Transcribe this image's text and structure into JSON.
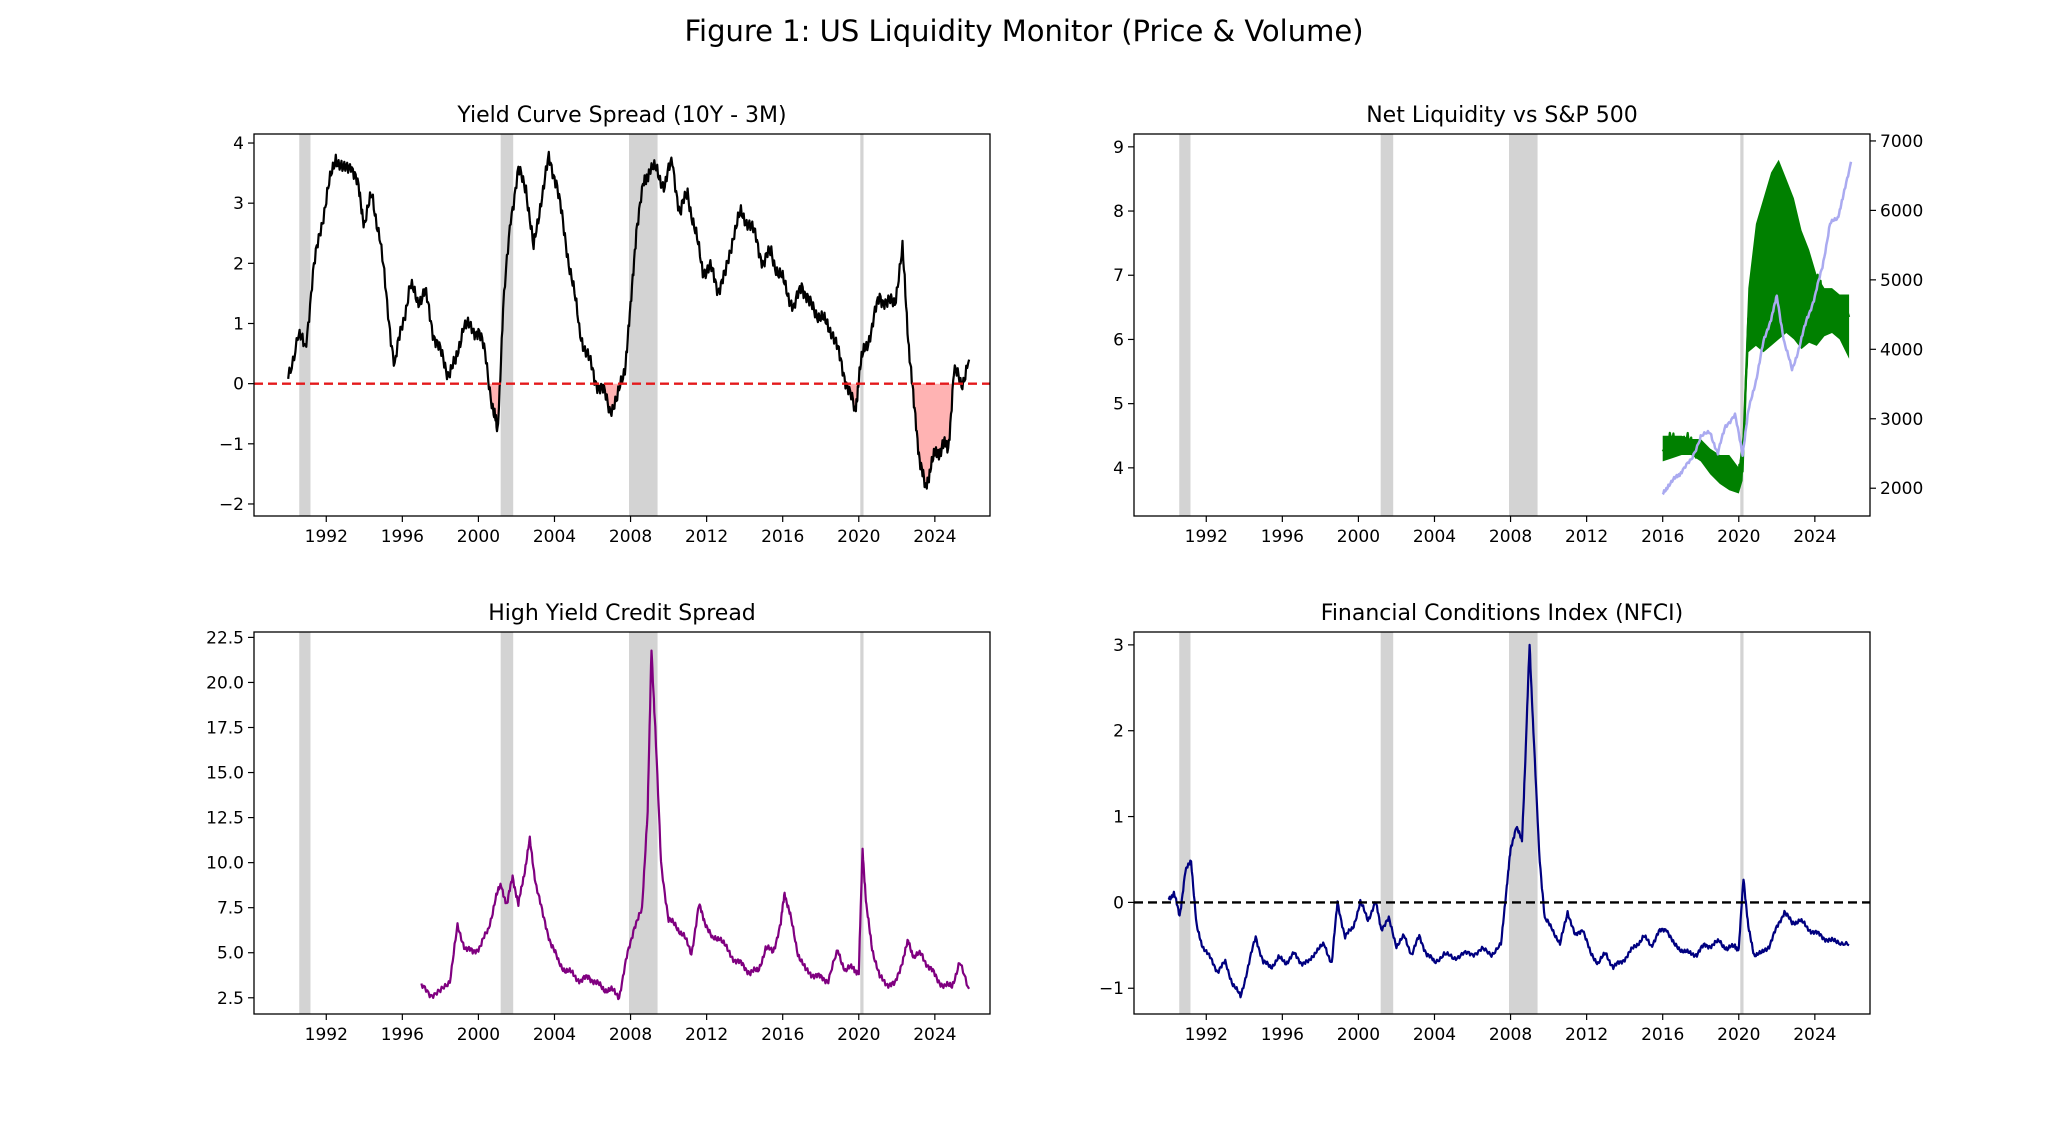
{
  "figure": {
    "title": "Figure 1: US Liquidity Monitor (Price & Volume)"
  },
  "recessions": [
    [
      1990.58,
      1991.17
    ],
    [
      2001.17,
      2001.83
    ],
    [
      2007.92,
      2009.42
    ],
    [
      2020.08,
      2020.25
    ]
  ],
  "chart_data": [
    {
      "type": "line",
      "title": "Yield Curve Spread (10Y - 3M)",
      "xlabel": "",
      "ylabel": "",
      "xlim": [
        1988.2,
        2026.9
      ],
      "ylim": [
        -2.2,
        4.15
      ],
      "xticks": [
        "1992",
        "1996",
        "2000",
        "2004",
        "2008",
        "2012",
        "2016",
        "2020",
        "2024"
      ],
      "yticks": [
        "−2",
        "−1",
        "0",
        "1",
        "2",
        "3",
        "4"
      ],
      "ytick_values": [
        -2,
        -1,
        0,
        1,
        2,
        3,
        4
      ],
      "reference_line": {
        "y": 0,
        "color": "#e41a1c",
        "style": "dashed"
      },
      "fill_below_zero": "#ffb3b3",
      "series": [
        {
          "name": "10Y - 3M spread",
          "color": "#000000",
          "x": [
            1990.0,
            1990.5,
            1990.9,
            1991.3,
            1991.7,
            1992.1,
            1992.5,
            1992.9,
            1993.3,
            1993.7,
            1994.0,
            1994.4,
            1994.8,
            1995.2,
            1995.6,
            1996.0,
            1996.4,
            1996.8,
            1997.2,
            1997.6,
            1998.0,
            1998.4,
            1998.8,
            1999.2,
            1999.6,
            2000.0,
            2000.4,
            2000.8,
            2001.0,
            2001.3,
            2001.7,
            2002.1,
            2002.5,
            2002.9,
            2003.3,
            2003.7,
            2004.1,
            2004.5,
            2004.9,
            2005.3,
            2005.7,
            2006.1,
            2006.5,
            2006.9,
            2007.3,
            2007.7,
            2008.0,
            2008.3,
            2008.7,
            2009.0,
            2009.4,
            2009.8,
            2010.2,
            2010.6,
            2011.0,
            2011.4,
            2011.8,
            2012.2,
            2012.6,
            2013.0,
            2013.4,
            2013.8,
            2014.2,
            2014.6,
            2015.0,
            2015.4,
            2015.8,
            2016.2,
            2016.6,
            2017.0,
            2017.4,
            2017.8,
            2018.2,
            2018.6,
            2019.0,
            2019.4,
            2019.8,
            2020.0,
            2020.3,
            2020.7,
            2021.1,
            2021.5,
            2021.9,
            2022.3,
            2022.6,
            2022.9,
            2023.2,
            2023.5,
            2023.8,
            2024.1,
            2024.4,
            2024.7,
            2025.0,
            2025.4,
            2025.8
          ],
          "y": [
            0.1,
            0.8,
            0.6,
            1.8,
            2.6,
            3.2,
            3.8,
            3.5,
            3.7,
            3.2,
            2.7,
            3.1,
            2.5,
            1.3,
            0.3,
            1.0,
            1.6,
            1.4,
            1.5,
            0.9,
            0.5,
            0.2,
            0.3,
            1.0,
            0.9,
            0.9,
            0.4,
            -0.5,
            -0.8,
            1.2,
            2.8,
            3.5,
            3.3,
            2.2,
            3.1,
            3.7,
            3.4,
            2.5,
            1.8,
            0.9,
            0.5,
            0.1,
            -0.1,
            -0.4,
            -0.3,
            0.3,
            1.2,
            2.6,
            3.3,
            3.6,
            3.5,
            3.3,
            3.7,
            2.8,
            3.2,
            2.5,
            1.9,
            1.9,
            1.6,
            1.8,
            2.5,
            2.8,
            2.7,
            2.4,
            2.0,
            2.2,
            1.8,
            1.6,
            1.2,
            1.7,
            1.3,
            1.2,
            1.0,
            0.9,
            0.4,
            0.0,
            -0.5,
            0.1,
            0.6,
            0.9,
            1.5,
            1.3,
            1.4,
            2.2,
            0.8,
            -0.4,
            -1.2,
            -1.8,
            -1.3,
            -1.2,
            -1.0,
            -1.1,
            0.2,
            0.0,
            0.4
          ]
        }
      ]
    },
    {
      "type": "line",
      "title": "Net Liquidity vs S&P 500",
      "xlabel": "",
      "ylabel": "",
      "xlim": [
        1988.2,
        2026.9
      ],
      "ylim": [
        3.25,
        9.2
      ],
      "y2lim": [
        1600,
        7100
      ],
      "xticks": [
        "1992",
        "1996",
        "2000",
        "2004",
        "2008",
        "2012",
        "2016",
        "2020",
        "2024"
      ],
      "yticks": [
        "4",
        "5",
        "6",
        "7",
        "8",
        "9"
      ],
      "ytick_values": [
        4,
        5,
        6,
        7,
        8,
        9
      ],
      "y2ticks": [
        "2000",
        "3000",
        "4000",
        "5000",
        "6000",
        "7000"
      ],
      "y2tick_values": [
        2000,
        3000,
        4000,
        5000,
        6000,
        7000
      ],
      "series": [
        {
          "name": "Net Liquidity",
          "axis": "left",
          "color": "#008000",
          "x": [
            2016.0,
            2016.5,
            2017.0,
            2017.5,
            2018.0,
            2018.5,
            2019.0,
            2019.5,
            2020.0,
            2020.2,
            2020.5,
            2020.9,
            2021.3,
            2021.7,
            2022.1,
            2022.5,
            2022.9,
            2023.3,
            2023.7,
            2024.1,
            2024.5,
            2024.9,
            2025.3,
            2025.8
          ],
          "y": [
            4.3,
            4.4,
            4.4,
            4.35,
            4.3,
            4.1,
            3.95,
            3.9,
            3.85,
            4.1,
            6.2,
            7.0,
            7.3,
            7.7,
            8.4,
            8.3,
            7.8,
            7.4,
            7.1,
            6.9,
            6.6,
            6.55,
            6.4,
            6.35
          ],
          "band_low": [
            4.1,
            4.15,
            4.2,
            4.2,
            4.1,
            3.9,
            3.75,
            3.65,
            3.6,
            3.8,
            5.8,
            5.9,
            5.8,
            5.9,
            6.0,
            6.1,
            6.0,
            5.85,
            5.95,
            5.9,
            6.05,
            6.1,
            6.0,
            5.7
          ],
          "band_high": [
            4.5,
            4.5,
            4.5,
            4.45,
            4.45,
            4.3,
            4.2,
            4.2,
            4.0,
            4.5,
            6.8,
            7.8,
            8.2,
            8.6,
            8.8,
            8.5,
            8.2,
            7.7,
            7.4,
            7.0,
            6.8,
            6.8,
            6.7,
            6.7
          ]
        },
        {
          "name": "S&P 500",
          "axis": "right",
          "color": "#aaaaf0",
          "x": [
            2016.0,
            2016.3,
            2016.7,
            2017.0,
            2017.5,
            2018.0,
            2018.5,
            2018.9,
            2019.3,
            2019.8,
            2020.2,
            2020.5,
            2020.9,
            2021.3,
            2021.7,
            2022.0,
            2022.4,
            2022.8,
            2023.2,
            2023.6,
            2024.0,
            2024.4,
            2024.8,
            2025.2,
            2025.5,
            2025.9
          ],
          "y": [
            1900,
            2050,
            2150,
            2250,
            2400,
            2750,
            2800,
            2500,
            2900,
            3050,
            2500,
            3100,
            3550,
            4100,
            4450,
            4750,
            4100,
            3700,
            4050,
            4450,
            4750,
            5200,
            5800,
            5900,
            6200,
            6700
          ]
        }
      ]
    },
    {
      "type": "line",
      "title": "High Yield Credit Spread",
      "xlabel": "",
      "ylabel": "",
      "xlim": [
        1988.2,
        2026.9
      ],
      "ylim": [
        1.6,
        22.8
      ],
      "xticks": [
        "1992",
        "1996",
        "2000",
        "2004",
        "2008",
        "2012",
        "2016",
        "2020",
        "2024"
      ],
      "yticks": [
        "2.5",
        "5.0",
        "7.5",
        "10.0",
        "12.5",
        "15.0",
        "17.5",
        "20.0",
        "22.5"
      ],
      "ytick_values": [
        2.5,
        5,
        7.5,
        10,
        12.5,
        15,
        17.5,
        20,
        22.5
      ],
      "series": [
        {
          "name": "HY spread",
          "color": "#800080",
          "x": [
            1997.0,
            1997.5,
            1998.0,
            1998.5,
            1998.9,
            1999.3,
            1999.7,
            2000.1,
            2000.5,
            2000.9,
            2001.2,
            2001.5,
            2001.8,
            2002.1,
            2002.4,
            2002.7,
            2003.0,
            2003.4,
            2003.8,
            2004.2,
            2004.6,
            2005.0,
            2005.4,
            2005.8,
            2006.2,
            2006.6,
            2007.0,
            2007.4,
            2007.8,
            2008.2,
            2008.6,
            2008.9,
            2009.1,
            2009.3,
            2009.6,
            2010.0,
            2010.4,
            2010.8,
            2011.2,
            2011.6,
            2011.9,
            2012.3,
            2012.7,
            2013.1,
            2013.5,
            2013.9,
            2014.3,
            2014.7,
            2015.1,
            2015.5,
            2015.9,
            2016.1,
            2016.4,
            2016.8,
            2017.2,
            2017.6,
            2018.0,
            2018.4,
            2018.9,
            2019.3,
            2019.7,
            2020.0,
            2020.2,
            2020.4,
            2020.7,
            2021.1,
            2021.5,
            2021.9,
            2022.3,
            2022.6,
            2022.9,
            2023.3,
            2023.7,
            2024.1,
            2024.5,
            2024.9,
            2025.3,
            2025.8
          ],
          "y": [
            3.1,
            2.7,
            2.8,
            3.5,
            6.4,
            5.3,
            5.0,
            5.4,
            6.2,
            8.0,
            8.8,
            7.6,
            9.3,
            7.6,
            9.4,
            11.2,
            9.0,
            7.0,
            5.6,
            4.5,
            4.0,
            3.8,
            3.4,
            3.7,
            3.3,
            3.0,
            2.9,
            2.6,
            4.7,
            6.5,
            7.3,
            13.0,
            21.8,
            17.5,
            10.0,
            6.8,
            6.5,
            5.9,
            5.0,
            7.6,
            6.8,
            5.7,
            5.9,
            5.1,
            4.6,
            4.3,
            3.9,
            4.0,
            5.2,
            5.1,
            6.6,
            8.4,
            7.0,
            5.0,
            4.0,
            3.8,
            3.6,
            3.5,
            5.1,
            4.0,
            4.2,
            3.9,
            10.8,
            7.5,
            5.3,
            3.6,
            3.3,
            3.2,
            4.6,
            5.6,
            4.8,
            4.9,
            4.2,
            3.6,
            3.1,
            3.2,
            4.4,
            3.0
          ]
        }
      ]
    },
    {
      "type": "line",
      "title": "Financial Conditions Index (NFCI)",
      "xlabel": "",
      "ylabel": "",
      "xlim": [
        1988.2,
        2026.9
      ],
      "ylim": [
        -1.3,
        3.15
      ],
      "xticks": [
        "1992",
        "1996",
        "2000",
        "2004",
        "2008",
        "2012",
        "2016",
        "2020",
        "2024"
      ],
      "yticks": [
        "−1",
        "0",
        "1",
        "2",
        "3"
      ],
      "ytick_values": [
        -1,
        0,
        1,
        2,
        3
      ],
      "reference_line": {
        "y": 0,
        "color": "#000000",
        "style": "dashed"
      },
      "series": [
        {
          "name": "NFCI",
          "color": "#000080",
          "x": [
            1990.0,
            1990.3,
            1990.6,
            1990.9,
            1991.2,
            1991.5,
            1991.8,
            1992.2,
            1992.6,
            1993.0,
            1993.4,
            1993.8,
            1994.2,
            1994.6,
            1995.0,
            1995.4,
            1995.8,
            1996.2,
            1996.6,
            1997.0,
            1997.4,
            1997.8,
            1998.2,
            1998.6,
            1998.9,
            1999.3,
            1999.7,
            2000.1,
            2000.5,
            2000.9,
            2001.2,
            2001.6,
            2002.0,
            2002.4,
            2002.8,
            2003.2,
            2003.6,
            2004.0,
            2004.5,
            2005.0,
            2005.5,
            2006.0,
            2006.5,
            2007.0,
            2007.5,
            2007.8,
            2008.0,
            2008.3,
            2008.6,
            2008.8,
            2009.0,
            2009.2,
            2009.5,
            2009.8,
            2010.2,
            2010.6,
            2011.0,
            2011.4,
            2011.8,
            2012.2,
            2012.6,
            2013.0,
            2013.4,
            2013.8,
            2014.2,
            2014.6,
            2015.0,
            2015.4,
            2015.8,
            2016.2,
            2016.6,
            2017.0,
            2017.4,
            2017.8,
            2018.2,
            2018.6,
            2019.0,
            2019.4,
            2019.8,
            2020.0,
            2020.25,
            2020.5,
            2020.8,
            2021.2,
            2021.6,
            2022.0,
            2022.4,
            2022.8,
            2023.2,
            2023.6,
            2024.0,
            2024.4,
            2024.8,
            2025.2,
            2025.8
          ],
          "y": [
            0.05,
            0.1,
            -0.15,
            0.35,
            0.5,
            -0.3,
            -0.5,
            -0.65,
            -0.8,
            -0.7,
            -0.95,
            -1.1,
            -0.75,
            -0.4,
            -0.7,
            -0.75,
            -0.65,
            -0.7,
            -0.6,
            -0.7,
            -0.7,
            -0.55,
            -0.5,
            -0.7,
            0.0,
            -0.4,
            -0.3,
            0.0,
            -0.2,
            0.0,
            -0.3,
            -0.2,
            -0.5,
            -0.4,
            -0.6,
            -0.4,
            -0.6,
            -0.7,
            -0.6,
            -0.65,
            -0.6,
            -0.6,
            -0.55,
            -0.6,
            -0.5,
            0.2,
            0.6,
            0.9,
            0.7,
            1.8,
            3.0,
            2.0,
            0.6,
            -0.2,
            -0.3,
            -0.5,
            -0.1,
            -0.4,
            -0.3,
            -0.6,
            -0.7,
            -0.6,
            -0.75,
            -0.7,
            -0.6,
            -0.5,
            -0.4,
            -0.5,
            -0.35,
            -0.3,
            -0.5,
            -0.55,
            -0.6,
            -0.6,
            -0.5,
            -0.5,
            -0.45,
            -0.55,
            -0.5,
            -0.55,
            0.3,
            -0.3,
            -0.6,
            -0.6,
            -0.5,
            -0.3,
            -0.1,
            -0.25,
            -0.2,
            -0.3,
            -0.35,
            -0.4,
            -0.45,
            -0.45,
            -0.5
          ]
        }
      ]
    }
  ]
}
